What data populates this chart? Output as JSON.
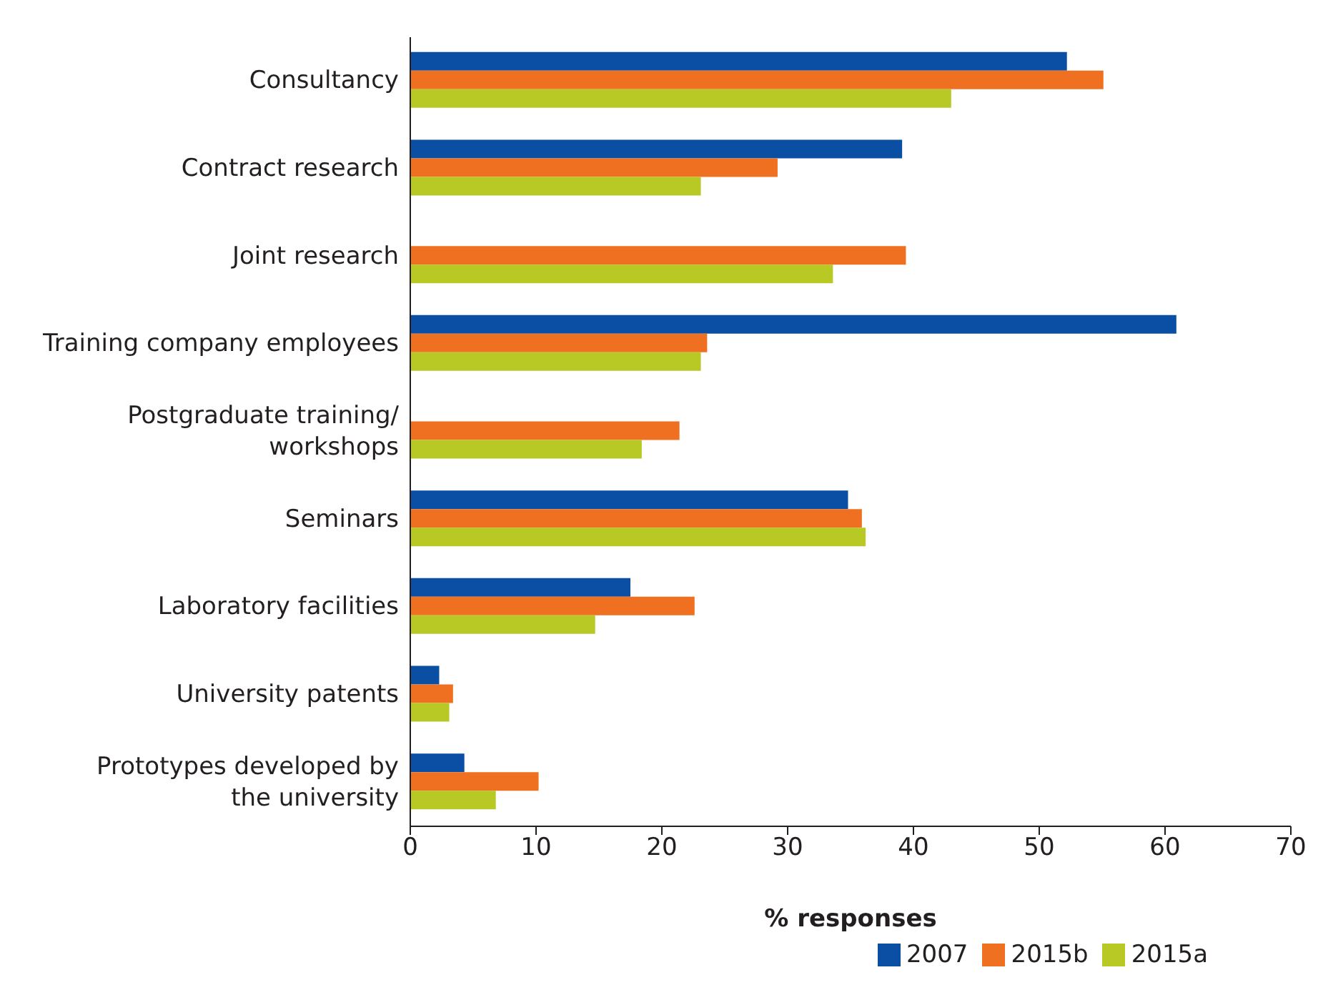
{
  "chart_data": {
    "type": "bar",
    "orientation": "horizontal",
    "xlabel": "% responses",
    "categories": [
      "Consultancy",
      "Contract research",
      "Joint research",
      "Training company employees",
      "Postgraduate training/\nworkshops",
      "Seminars",
      "Laboratory facilities",
      "University patents",
      "Prototypes developed by\nthe university"
    ],
    "series": [
      {
        "name": "2007",
        "color": "#0a4fa3",
        "values": [
          52.2,
          39.1,
          null,
          60.9,
          null,
          34.8,
          17.5,
          2.3,
          4.3
        ]
      },
      {
        "name": "2015b",
        "color": "#f07021",
        "values": [
          55.1,
          29.2,
          39.4,
          23.6,
          21.4,
          35.9,
          22.6,
          3.4,
          10.2
        ]
      },
      {
        "name": "2015a",
        "color": "#b8c925",
        "values": [
          43.0,
          23.1,
          33.6,
          23.1,
          18.4,
          36.2,
          14.7,
          3.1,
          6.8
        ]
      }
    ],
    "xlim": [
      0,
      70
    ],
    "xticks": [
      0,
      10,
      20,
      30,
      40,
      50,
      60,
      70
    ],
    "grid": false,
    "legend": "bottom"
  }
}
